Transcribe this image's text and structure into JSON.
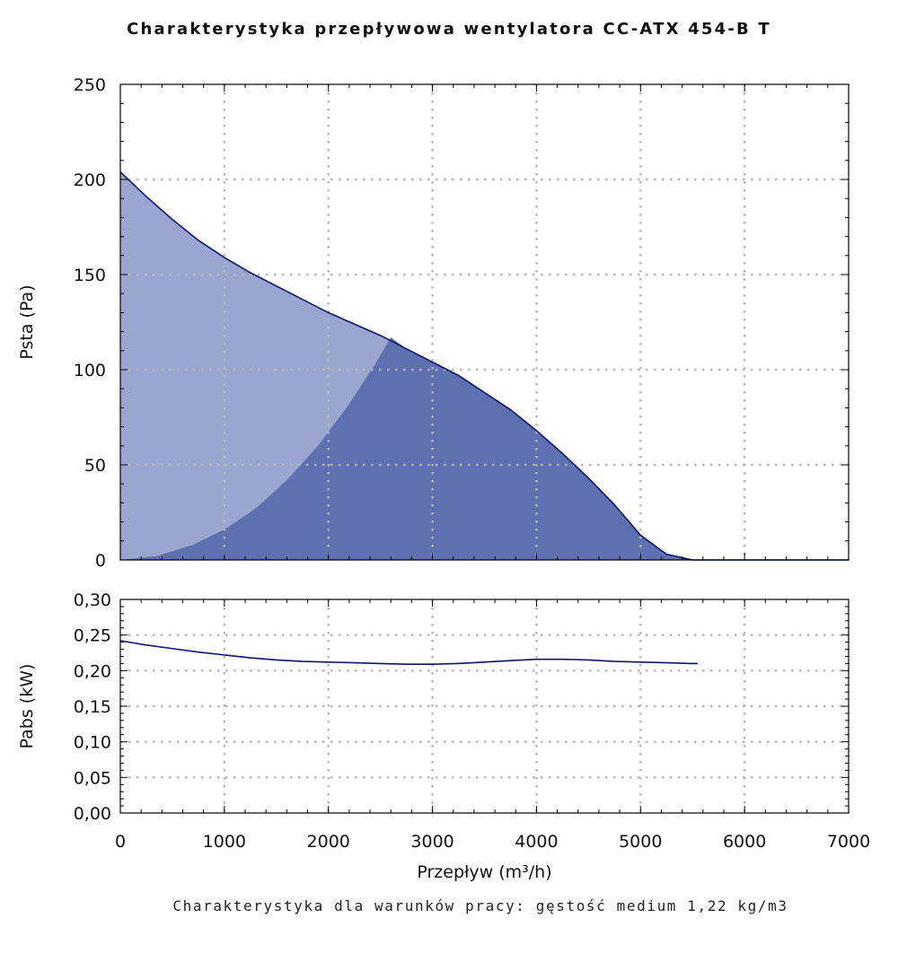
{
  "title": "Charakterystyka przepływowa wentylatora CC-ATX 454-B T",
  "footer_note": "Charakterystyka dla warunków pracy: gęstość medium 1,22 kg/m3",
  "colors": {
    "curve_line": "#0b1670",
    "fill_light": "#9aa6cf",
    "fill_dark": "#5e70b0",
    "grid": "#b5b5b5",
    "axis": "#000000"
  },
  "chart_data": [
    {
      "type": "area",
      "xlabel": "",
      "ylabel": "Psta (Pa)",
      "xlim": [
        0,
        7000
      ],
      "ylim": [
        0,
        250
      ],
      "x_ticks": [
        "0",
        "1000",
        "2000",
        "3000",
        "4000",
        "5000",
        "6000",
        "7000"
      ],
      "y_ticks": [
        "0",
        "50",
        "100",
        "150",
        "200",
        "250"
      ],
      "grid": true,
      "series": [
        {
          "x": [
            0,
            250,
            500,
            750,
            1000,
            1250,
            1500,
            1750,
            2000,
            2250,
            2500,
            2750,
            3000,
            3250,
            3500,
            3750,
            4000,
            4250,
            4500,
            4750,
            5000,
            5250,
            5500,
            5550,
            7000
          ],
          "values": [
            204,
            191,
            179,
            168,
            159,
            151,
            144,
            137,
            130,
            124,
            118,
            111,
            104,
            97,
            88,
            79,
            68,
            56,
            43,
            29,
            13,
            3,
            0,
            0,
            0
          ]
        }
      ],
      "shaded_region_boundary": {
        "x": [
          0,
          350,
          700,
          1000,
          1300,
          1600,
          1900,
          2200,
          2450,
          2600
        ],
        "values": [
          0,
          2,
          8,
          16,
          27,
          42,
          60,
          82,
          103,
          117
        ]
      }
    },
    {
      "type": "line",
      "xlabel": "Przepływ (m³/h)",
      "ylabel": "Pabs (kW)",
      "xlim": [
        0,
        7000
      ],
      "ylim": [
        0,
        0.3
      ],
      "x_ticks": [
        "0",
        "1000",
        "2000",
        "3000",
        "4000",
        "5000",
        "6000",
        "7000"
      ],
      "y_ticks": [
        "0,00",
        "0,05",
        "0,10",
        "0,15",
        "0,20",
        "0,25",
        "0,30"
      ],
      "grid": true,
      "series": [
        {
          "x": [
            0,
            250,
            500,
            750,
            1000,
            1250,
            1500,
            1750,
            2000,
            2250,
            2500,
            2750,
            3000,
            3250,
            3500,
            3750,
            4000,
            4250,
            4500,
            4750,
            5000,
            5250,
            5500,
            5550
          ],
          "values": [
            0.242,
            0.236,
            0.231,
            0.226,
            0.222,
            0.218,
            0.215,
            0.213,
            0.212,
            0.211,
            0.21,
            0.209,
            0.209,
            0.21,
            0.212,
            0.214,
            0.216,
            0.216,
            0.215,
            0.213,
            0.212,
            0.211,
            0.21,
            0.21
          ]
        }
      ]
    }
  ]
}
